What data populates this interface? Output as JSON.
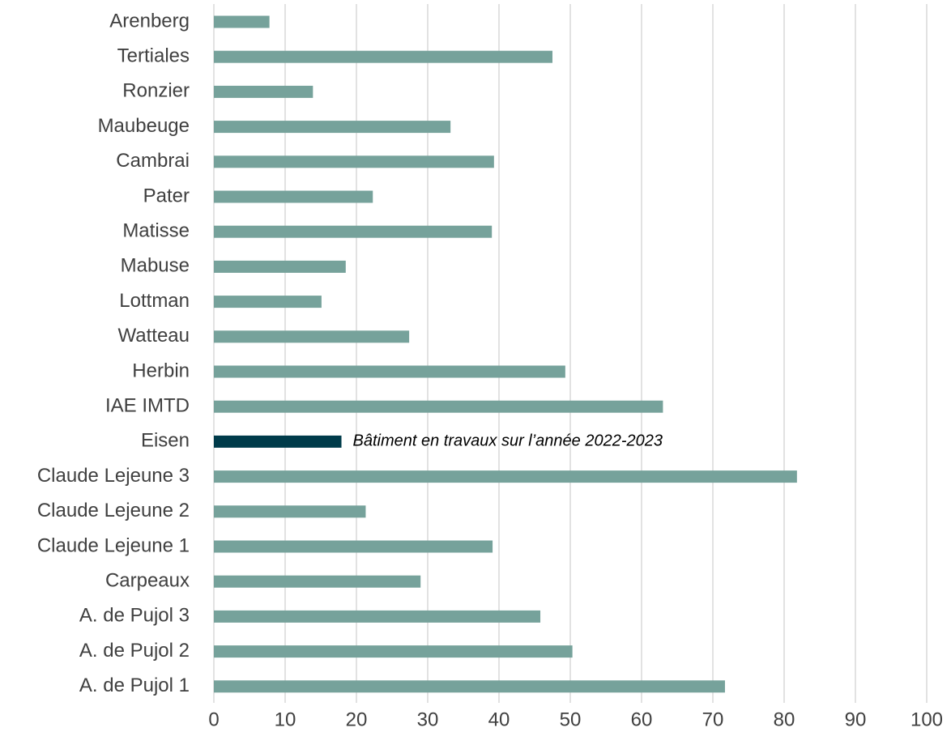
{
  "chart_data": {
    "type": "bar",
    "orientation": "horizontal",
    "categories": [
      "Arenberg",
      "Tertiales",
      "Ronzier",
      "Maubeuge",
      "Cambrai",
      "Pater",
      "Matisse",
      "Mabuse",
      "Lottman",
      "Watteau",
      "Herbin",
      "IAE IMTD",
      "Eisen",
      "Claude Lejeune 3",
      "Claude Lejeune 2",
      "Claude Lejeune 1",
      "Carpeaux",
      "A. de Pujol 3",
      "A. de Pujol 2",
      "A. de Pujol 1"
    ],
    "values": [
      7.8,
      47.5,
      13.9,
      33.2,
      39.3,
      22.3,
      39.0,
      18.5,
      15.1,
      27.4,
      49.3,
      63.0,
      17.9,
      81.8,
      21.3,
      39.1,
      29.0,
      45.8,
      50.3,
      71.7
    ],
    "colors": [
      "#76a29b",
      "#76a29b",
      "#76a29b",
      "#76a29b",
      "#76a29b",
      "#76a29b",
      "#76a29b",
      "#76a29b",
      "#76a29b",
      "#76a29b",
      "#76a29b",
      "#76a29b",
      "#003b4a",
      "#76a29b",
      "#76a29b",
      "#76a29b",
      "#76a29b",
      "#76a29b",
      "#76a29b",
      "#76a29b"
    ],
    "annotations": [
      {
        "category": "Eisen",
        "text": "Bâtiment en travaux sur l’année 2022-2023"
      }
    ],
    "xlim": [
      0,
      100
    ],
    "xticks": [
      0,
      10,
      20,
      30,
      40,
      50,
      60,
      70,
      80,
      90,
      100
    ],
    "grid": true
  }
}
